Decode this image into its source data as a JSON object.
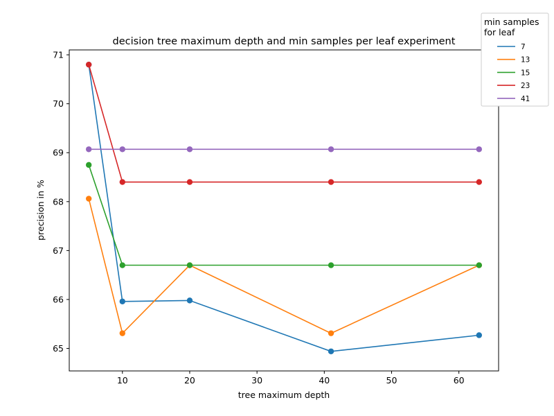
{
  "chart_data": {
    "type": "line",
    "title": "decision tree maximum depth and min samples per leaf experiment",
    "xlabel": "tree maximum depth",
    "ylabel": "precision in %",
    "x": [
      5,
      10,
      20,
      41,
      63
    ],
    "xlim": [
      2.1,
      65.9
    ],
    "ylim": [
      64.54,
      71.1
    ],
    "xticks": [
      10,
      20,
      30,
      40,
      50,
      60
    ],
    "yticks": [
      65,
      66,
      67,
      68,
      69,
      70,
      71
    ],
    "grid": false,
    "legend": {
      "title_lines": [
        "min samples",
        "for leaf"
      ],
      "placement": "top-right, outside plot area"
    },
    "series": [
      {
        "name": "7",
        "color": "#1f77b4",
        "values": [
          70.8,
          65.96,
          65.98,
          64.94,
          65.27
        ]
      },
      {
        "name": "13",
        "color": "#ff7f0e",
        "values": [
          68.06,
          65.31,
          66.7,
          65.31,
          66.7
        ]
      },
      {
        "name": "15",
        "color": "#2ca02c",
        "values": [
          68.75,
          66.7,
          66.7,
          66.7,
          66.7
        ]
      },
      {
        "name": "23",
        "color": "#d62728",
        "values": [
          70.8,
          68.4,
          68.4,
          68.4,
          68.4
        ]
      },
      {
        "name": "41",
        "color": "#9467bd",
        "values": [
          69.07,
          69.07,
          69.07,
          69.07,
          69.07
        ]
      }
    ]
  }
}
